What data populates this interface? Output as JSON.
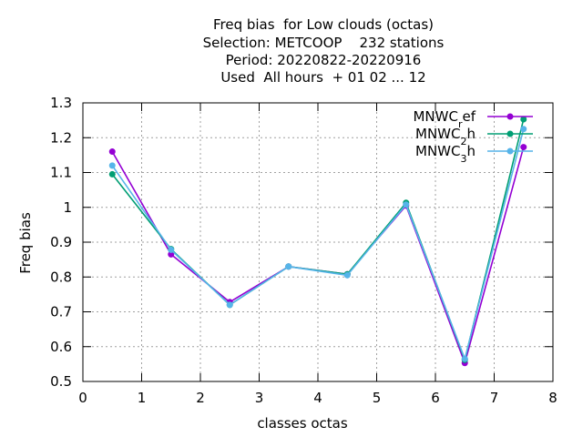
{
  "chart_data": {
    "type": "line",
    "title_lines": [
      "Freq bias  for Low clouds (octas)",
      "Selection: METCOOP    232 stations",
      "Period: 20220822-20220916",
      "Used  All hours  + 01 02 ... 12"
    ],
    "xlabel": "classes octas",
    "ylabel": "Freq bias",
    "xlim": [
      0,
      8
    ],
    "ylim": [
      0.5,
      1.3
    ],
    "xticks": [
      "0",
      "1",
      "2",
      "3",
      "4",
      "5",
      "6",
      "7",
      "8"
    ],
    "yticks": [
      "0.5",
      "0.6",
      "0.7",
      "0.8",
      "0.9",
      "1",
      "1.1",
      "1.2",
      "1.3"
    ],
    "grid": true,
    "legend_position": "top-right",
    "x": [
      0.5,
      1.5,
      2.5,
      3.5,
      4.5,
      5.5,
      6.5,
      7.5
    ],
    "series": [
      {
        "name": "MNWC_ref",
        "base": "MNWC",
        "sub": "r",
        "rest": "ef",
        "color": "#9400d3",
        "marker": "circle-filled",
        "values": [
          1.16,
          0.865,
          0.728,
          0.83,
          0.808,
          1.005,
          0.553,
          1.173
        ]
      },
      {
        "name": "MNWC_2h",
        "base": "MNWC",
        "sub": "2",
        "rest": "h",
        "color": "#009e73",
        "marker": "circle-filled",
        "values": [
          1.095,
          0.88,
          0.72,
          0.83,
          0.808,
          1.013,
          0.562,
          1.253
        ]
      },
      {
        "name": "MNWC_3h",
        "base": "MNWC",
        "sub": "3",
        "rest": "h",
        "color": "#56b4e9",
        "marker": "circle-filled",
        "values": [
          1.12,
          0.878,
          0.72,
          0.83,
          0.805,
          1.008,
          0.565,
          1.225
        ]
      }
    ]
  }
}
